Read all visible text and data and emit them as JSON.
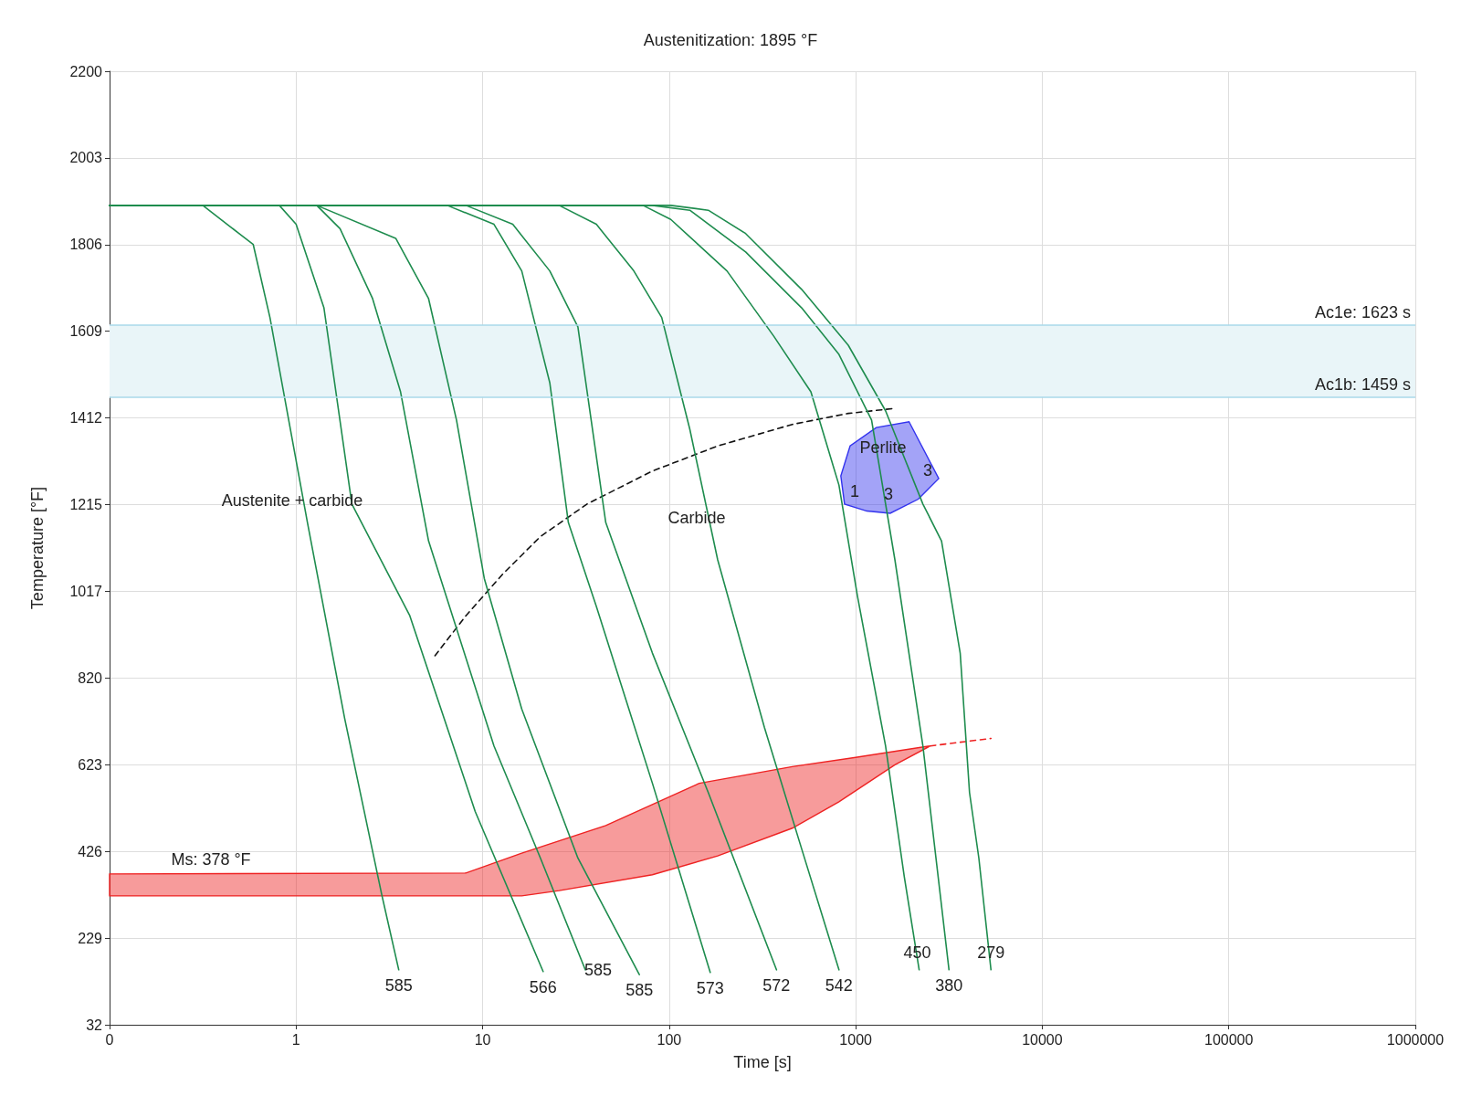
{
  "chart_data": {
    "type": "line",
    "title": "Austenitization: 1895 °F",
    "xlabel": "Time [s]",
    "ylabel": "Temperature [°F]",
    "log": "x",
    "grid": true,
    "marker": "none",
    "xlim": [
      0.1,
      1000000
    ],
    "xticks": [
      {
        "value": 0.1,
        "label": "0"
      },
      1,
      10,
      100,
      1000,
      10000,
      100000,
      1000000
    ],
    "ylim": [
      32,
      2200
    ],
    "yticks": [
      32,
      {
        "value": 229.09,
        "label": "229"
      },
      {
        "value": 426.18,
        "label": "426"
      },
      {
        "value": 623.27,
        "label": "623"
      },
      {
        "value": 820.36,
        "label": "820"
      },
      {
        "value": 1017.45,
        "label": "1017"
      },
      {
        "value": 1214.55,
        "label": "1215"
      },
      {
        "value": 1411.64,
        "label": "1412"
      },
      {
        "value": 1608.73,
        "label": "1609"
      },
      {
        "value": 1805.82,
        "label": "1806"
      },
      {
        "value": 2002.91,
        "label": "2003"
      },
      2200
    ],
    "bands": [
      {
        "axis": "y",
        "from": 1459,
        "to": 1623,
        "color": "#e9f5f8"
      }
    ],
    "ref_lines": [
      {
        "axis": "y",
        "value": 1623,
        "label": "Ac1e: 1623 s",
        "color": "#a8d8ea"
      },
      {
        "axis": "y",
        "value": 1459,
        "label": "Ac1b: 1459 s",
        "color": "#a8d8ea"
      }
    ],
    "series": [
      {
        "type": "area",
        "color": "#ee2222",
        "x": [
          0.1,
          8.13,
          16.2,
          45.7,
          145,
          457,
          1000,
          2512,
          1622,
          813,
          457,
          182,
          81.3,
          25.7,
          16.2,
          0.1
        ],
        "values": [
          375,
          377,
          422,
          485,
          581,
          619,
          640,
          666,
          623,
          539,
          479,
          416,
          373,
          337,
          325,
          325
        ]
      },
      {
        "color": "#ee2222",
        "line_style": "dashed",
        "x": [
          2512,
          5309
        ],
        "values": [
          666,
          683
        ]
      },
      {
        "type": "area",
        "color": "#3333ee",
        "x": [
          1931,
          2786,
          2163,
          1531,
          1148,
          871,
          832,
          933,
          1288
        ],
        "values": [
          1403,
          1274,
          1227,
          1195,
          1200,
          1216,
          1280,
          1348,
          1390
        ]
      },
      {
        "color": "#111111",
        "line_style": "dashed",
        "x": [
          5.55,
          8.13,
          12.9,
          20.4,
          36.3,
          81.3,
          182,
          457,
          912,
          1585
        ],
        "values": [
          871,
          962,
          1058,
          1142,
          1216,
          1291,
          1348,
          1397,
          1422,
          1433
        ]
      },
      {
        "color": "#1e8c4e",
        "x": [
          0.1,
          0.316,
          0.589,
          0.724,
          1.15,
          1.82,
          2.88,
          3.55
        ],
        "values": [
          1895,
          1895,
          1806,
          1640,
          1174,
          729,
          327,
          157
        ]
      },
      {
        "color": "#1e8c4e",
        "x": [
          0.1,
          0.813,
          1,
          1.41,
          1.99,
          4.07,
          9.12,
          21.1
        ],
        "values": [
          1895,
          1895,
          1852,
          1662,
          1216,
          962,
          517,
          153
        ]
      },
      {
        "color": "#1e8c4e",
        "x": [
          0.1,
          1.29,
          1.72,
          2.57,
          3.63,
          5.13,
          11.5,
          20.4,
          35.5
        ],
        "values": [
          1895,
          1895,
          1842,
          1683,
          1471,
          1132,
          666,
          411,
          157
        ]
      },
      {
        "color": "#1e8c4e",
        "x": [
          0.1,
          1.29,
          3.42,
          5.13,
          7.24,
          10.2,
          16.2,
          32.4,
          69.2
        ],
        "values": [
          1895,
          1895,
          1820,
          1683,
          1407,
          1047,
          750,
          411,
          146
        ]
      },
      {
        "color": "#1e8c4e",
        "x": [
          0.1,
          6.46,
          11.5,
          16.2,
          22.9,
          28.8,
          40.7,
          81.3,
          166
        ],
        "values": [
          1895,
          1895,
          1852,
          1746,
          1492,
          1174,
          983,
          581,
          151
        ]
      },
      {
        "color": "#1e8c4e",
        "x": [
          0.1,
          8.13,
          14.5,
          22.9,
          32.4,
          45.7,
          81.3,
          162,
          376
        ],
        "values": [
          1895,
          1895,
          1852,
          1746,
          1619,
          1174,
          877,
          560,
          157
        ]
      },
      {
        "color": "#1e8c4e",
        "x": [
          0.1,
          25.7,
          40.7,
          64.6,
          91.2,
          129,
          182,
          324,
          513,
          813
        ],
        "values": [
          1895,
          1895,
          1852,
          1746,
          1640,
          1386,
          1089,
          708,
          432,
          157
        ]
      },
      {
        "color": "#1e8c4e",
        "x": [
          0.1,
          72.4,
          102,
          204,
          363,
          575,
          813,
          1023,
          1445,
          1820,
          2188
        ],
        "values": [
          1895,
          1895,
          1863,
          1746,
          1598,
          1471,
          1259,
          1005,
          666,
          369,
          157
        ]
      },
      {
        "color": "#1e8c4e",
        "x": [
          0.1,
          81.3,
          129,
          257,
          513,
          813,
          1216,
          1622,
          2291,
          3162
        ],
        "values": [
          1895,
          1895,
          1884,
          1789,
          1662,
          1556,
          1407,
          1089,
          666,
          157
        ]
      },
      {
        "color": "#1e8c4e",
        "x": [
          0.1,
          102,
          162,
          257,
          513,
          912,
          1445,
          2291,
          2884,
          3631,
          4074,
          4571,
          5309
        ],
        "values": [
          1895,
          1895,
          1884,
          1831,
          1704,
          1577,
          1428,
          1216,
          1132,
          877,
          560,
          411,
          157
        ]
      }
    ],
    "annotations": [
      "Austenite + carbide",
      "Carbide",
      "Perlite",
      "1",
      "3",
      "3",
      "Ms: 378 °F",
      {
        "text": "585",
        "x": 3.55,
        "y": 157
      },
      {
        "text": "566",
        "x": 21.1,
        "y": 153
      },
      {
        "text": "585",
        "x": 35.5,
        "y": 157
      },
      {
        "text": "585",
        "x": 69.2,
        "y": 146
      },
      {
        "text": "573",
        "x": 166,
        "y": 151
      },
      {
        "text": "572",
        "x": 376,
        "y": 157
      },
      {
        "text": "542",
        "x": 813,
        "y": 157
      },
      {
        "text": "450",
        "x": 2188,
        "y": 157
      },
      {
        "text": "380",
        "x": 3162,
        "y": 157
      },
      {
        "text": "279",
        "x": 5309,
        "y": 157
      }
    ]
  }
}
